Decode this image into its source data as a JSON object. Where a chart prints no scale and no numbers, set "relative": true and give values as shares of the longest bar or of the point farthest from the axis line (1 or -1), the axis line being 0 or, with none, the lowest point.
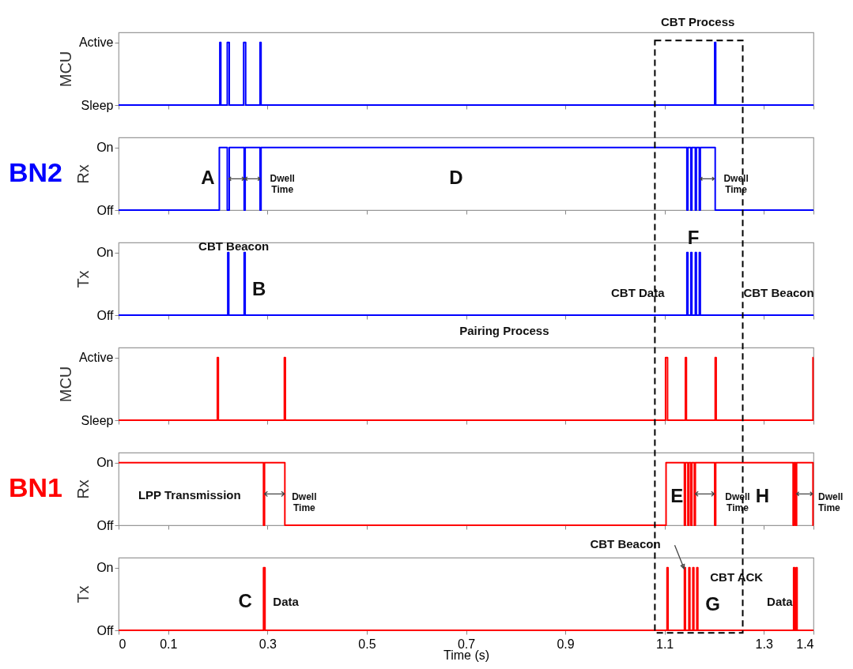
{
  "chart_data": [
    {
      "type": "step",
      "ylabel": "MCU",
      "xlim": [
        0,
        1.4
      ],
      "xticks": [
        0,
        0.1,
        0.3,
        0.5,
        0.7,
        0.9,
        1.1,
        1.3,
        1.4
      ],
      "relative": true,
      "y_categories": [
        "Active",
        "Sleep"
      ],
      "tick_labels": "y",
      "marker": "none",
      "series": [
        {
          "color": "#0000ff",
          "x": [
            0,
            0.204,
            0.206,
            0.219,
            0.223,
            0.252,
            0.256,
            0.285,
            0.287,
            1.201,
            1.203,
            1.4
          ],
          "values": [
            0,
            1,
            0,
            1,
            0,
            1,
            0,
            1,
            0,
            1,
            0,
            0
          ]
        }
      ],
      "annotations": [
        "CBT Process"
      ]
    },
    {
      "type": "step",
      "title": "BN2",
      "ylabel": "Rx",
      "xlim": [
        0,
        1.4
      ],
      "xticks": [
        0,
        0.1,
        0.3,
        0.5,
        0.7,
        0.9,
        1.1,
        1.3,
        1.4
      ],
      "relative": true,
      "y_categories": [
        "On",
        "Off"
      ],
      "tick_labels": "y",
      "marker": "none",
      "series": [
        {
          "color": "#0000ff",
          "x": [
            0,
            0.203,
            0.219,
            0.223,
            0.253,
            0.255,
            0.285,
            0.287,
            1.145,
            1.147,
            1.153,
            1.155,
            1.162,
            1.164,
            1.17,
            1.172,
            1.202,
            1.4
          ],
          "values": [
            0,
            1,
            0,
            1,
            0,
            1,
            0,
            1,
            0,
            1,
            0,
            1,
            0,
            1,
            0,
            1,
            0,
            0
          ]
        }
      ],
      "annotations": [
        "A",
        "Dwell\nTime",
        "D",
        "Dwell\nTime"
      ]
    },
    {
      "type": "step",
      "ylabel": "Tx",
      "xlim": [
        0,
        1.4
      ],
      "xticks": [
        0,
        0.1,
        0.3,
        0.5,
        0.7,
        0.9,
        1.1,
        1.3,
        1.4
      ],
      "relative": true,
      "y_categories": [
        "On",
        "Off"
      ],
      "tick_labels": "y",
      "marker": "none",
      "series": [
        {
          "color": "#0000ff",
          "x": [
            0,
            0.22,
            0.222,
            0.253,
            0.255,
            1.145,
            1.147,
            1.153,
            1.155,
            1.162,
            1.164,
            1.17,
            1.172,
            1.4
          ],
          "values": [
            0,
            1,
            0,
            1,
            0,
            1,
            0,
            1,
            0,
            1,
            0,
            1,
            0,
            0
          ]
        }
      ],
      "annotations": [
        "CBT Beacon",
        "B",
        "CBT Data",
        "F",
        "CBT Beacon"
      ]
    },
    {
      "type": "step",
      "ylabel": "MCU",
      "xlim": [
        0,
        1.4
      ],
      "xticks": [
        0,
        0.1,
        0.3,
        0.5,
        0.7,
        0.9,
        1.1,
        1.3,
        1.4
      ],
      "relative": true,
      "y_categories": [
        "Active",
        "Sleep"
      ],
      "tick_labels": "y",
      "marker": "none",
      "series": [
        {
          "color": "#ff0000",
          "x": [
            0,
            0.199,
            0.201,
            0.334,
            0.336,
            1.102,
            1.106,
            1.142,
            1.144,
            1.202,
            1.204,
            1.399,
            1.4
          ],
          "values": [
            0,
            1,
            0,
            1,
            0,
            1,
            0,
            1,
            0,
            1,
            0,
            1,
            1
          ]
        }
      ],
      "annotations": [
        "Pairing Process"
      ]
    },
    {
      "type": "step",
      "title": "BN1",
      "ylabel": "Rx",
      "xlim": [
        0,
        1.4
      ],
      "xticks": [
        0,
        0.1,
        0.3,
        0.5,
        0.7,
        0.9,
        1.1,
        1.3,
        1.4
      ],
      "relative": true,
      "y_categories": [
        "On",
        "Off"
      ],
      "tick_labels": "y",
      "marker": "none",
      "series": [
        {
          "color": "#ff0000",
          "x": [
            0,
            0.292,
            0.294,
            0.335,
            1.103,
            1.14,
            1.142,
            1.147,
            1.149,
            1.153,
            1.155,
            1.16,
            1.162,
            1.201,
            1.203,
            1.359,
            1.361,
            1.364,
            1.366,
            1.399,
            1.4
          ],
          "values": [
            1,
            0,
            1,
            0,
            1,
            0,
            1,
            0,
            1,
            0,
            1,
            0,
            1,
            0,
            1,
            0,
            1,
            0,
            1,
            0,
            0
          ]
        }
      ],
      "annotations": [
        "LPP Transmission",
        "Dwell\nTime",
        "E",
        "Dwell\nTime",
        "H",
        "Dwell\nTime"
      ]
    },
    {
      "type": "step",
      "xlabel": "Time (s)",
      "ylabel": "Tx",
      "xlim": [
        0,
        1.4
      ],
      "xticks": [
        0,
        0.1,
        0.3,
        0.5,
        0.7,
        0.9,
        1.1,
        1.3,
        1.4
      ],
      "relative": true,
      "y_categories": [
        "On",
        "Off"
      ],
      "marker": "none",
      "series": [
        {
          "color": "#ff0000",
          "x": [
            0,
            0.292,
            0.295,
            1.105,
            1.107,
            1.14,
            1.142,
            1.149,
            1.151,
            1.157,
            1.159,
            1.165,
            1.167,
            1.36,
            1.362,
            1.365,
            1.367,
            1.4
          ],
          "values": [
            0,
            1,
            0,
            1,
            0,
            1,
            0,
            1,
            0,
            1,
            0,
            1,
            0,
            1,
            0,
            1,
            0,
            0
          ]
        }
      ],
      "annotations": [
        "C",
        "Data",
        "CBT Beacon",
        "CBT ACK",
        "G",
        "Data"
      ]
    }
  ]
}
